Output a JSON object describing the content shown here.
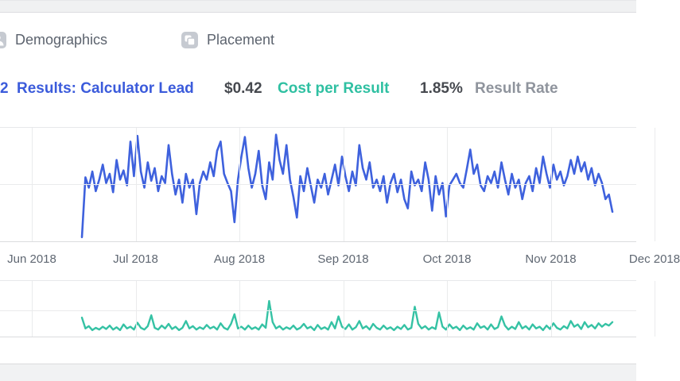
{
  "tabs": {
    "items": [
      {
        "label": "Demographics",
        "icon": "demographics-icon"
      },
      {
        "label": "Placement",
        "icon": "placement-icon"
      }
    ]
  },
  "stats": {
    "results": {
      "value_truncated": "2",
      "label": "Results: Calculator Lead",
      "color": "#3b5bdb"
    },
    "cost_per_result": {
      "value": "$0.42",
      "label": "Cost per Result",
      "value_color": "#46494f",
      "label_color": "#2fc0a2"
    },
    "result_rate": {
      "value": "1.85%",
      "label": "Result Rate",
      "value_color": "#46494f",
      "label_color": "#8f949d"
    }
  },
  "chart_data": [
    {
      "type": "line",
      "name": "results-per-day",
      "title": "",
      "color": "#3e61dd",
      "stroke_width": 2.6,
      "x_ticks": [
        "Jun 2018",
        "Jul 2018",
        "Aug 2018",
        "Sep 2018",
        "Oct 2018",
        "Nov 2018",
        "Dec 2018"
      ],
      "x_range": [
        "mid-Jun 2018",
        "mid-Nov 2018"
      ],
      "ylim": [
        0,
        100
      ],
      "y_units": "relative (no y-axis labels shown)",
      "grid": true,
      "legend": false,
      "values": [
        5,
        57,
        48,
        62,
        45,
        55,
        68,
        52,
        60,
        44,
        72,
        55,
        63,
        50,
        88,
        58,
        93,
        62,
        48,
        70,
        54,
        65,
        45,
        58,
        52,
        85,
        60,
        42,
        55,
        35,
        60,
        48,
        55,
        25,
        52,
        62,
        55,
        70,
        58,
        80,
        88,
        60,
        52,
        45,
        18,
        55,
        75,
        92,
        65,
        48,
        60,
        80,
        50,
        38,
        70,
        55,
        94,
        72,
        60,
        85,
        55,
        40,
        22,
        58,
        45,
        65,
        50,
        35,
        55,
        48,
        60,
        42,
        55,
        68,
        50,
        75,
        58,
        45,
        62,
        50,
        85,
        65,
        55,
        70,
        48,
        55,
        45,
        58,
        35,
        52,
        60,
        44,
        55,
        38,
        30,
        62,
        50,
        55,
        45,
        70,
        55,
        28,
        58,
        42,
        52,
        23,
        50,
        55,
        60,
        52,
        48,
        64,
        81,
        60,
        68,
        50,
        45,
        58,
        52,
        62,
        48,
        70,
        55,
        42,
        60,
        48,
        55,
        38,
        52,
        58,
        45,
        65,
        52,
        75,
        60,
        48,
        68,
        55,
        62,
        50,
        58,
        72,
        60,
        75,
        62,
        70,
        55,
        65,
        50,
        60,
        52,
        38,
        42,
        27
      ]
    },
    {
      "type": "line",
      "name": "cost-per-result-per-day",
      "title": "",
      "color": "#35c2a4",
      "stroke_width": 2.4,
      "x_range": [
        "mid-Jun 2018",
        "mid-Nov 2018"
      ],
      "ylim": [
        0,
        100
      ],
      "y_units": "relative (no y-axis labels shown)",
      "grid": true,
      "legend": false,
      "values": [
        36,
        17,
        21,
        14,
        18,
        15,
        20,
        16,
        22,
        15,
        19,
        14,
        24,
        17,
        20,
        15,
        27,
        18,
        15,
        21,
        40,
        18,
        15,
        22,
        17,
        25,
        16,
        20,
        14,
        18,
        30,
        17,
        21,
        15,
        19,
        16,
        23,
        17,
        20,
        15,
        26,
        18,
        15,
        25,
        42,
        17,
        20,
        15,
        22,
        16,
        19,
        15,
        24,
        18,
        65,
        28,
        17,
        21,
        15,
        19,
        16,
        22,
        15,
        18,
        25,
        17,
        20,
        14,
        23,
        16,
        19,
        15,
        28,
        17,
        38,
        20,
        16,
        24,
        15,
        19,
        30,
        17,
        21,
        15,
        25,
        18,
        15,
        22,
        16,
        19,
        14,
        20,
        16,
        23,
        15,
        18,
        55,
        25,
        17,
        21,
        15,
        19,
        16,
        45,
        20,
        15,
        24,
        17,
        20,
        14,
        22,
        16,
        19,
        15,
        26,
        18,
        21,
        15,
        24,
        16,
        19,
        38,
        22,
        15,
        20,
        16,
        28,
        17,
        21,
        15,
        24,
        17,
        20,
        14,
        22,
        16,
        26,
        18,
        15,
        21,
        17,
        30,
        20,
        24,
        16,
        28,
        19,
        23,
        17,
        26,
        20,
        25,
        22,
        28
      ]
    }
  ],
  "colors": {
    "results_blue": "#3b5bdb",
    "cost_green": "#2fc0a2",
    "dark_value": "#46494f",
    "muted_label": "#8f949d",
    "gridline": "#eaebec",
    "topbar_bg": "#f0f1f2",
    "footer_bg": "#f1f2f3"
  }
}
